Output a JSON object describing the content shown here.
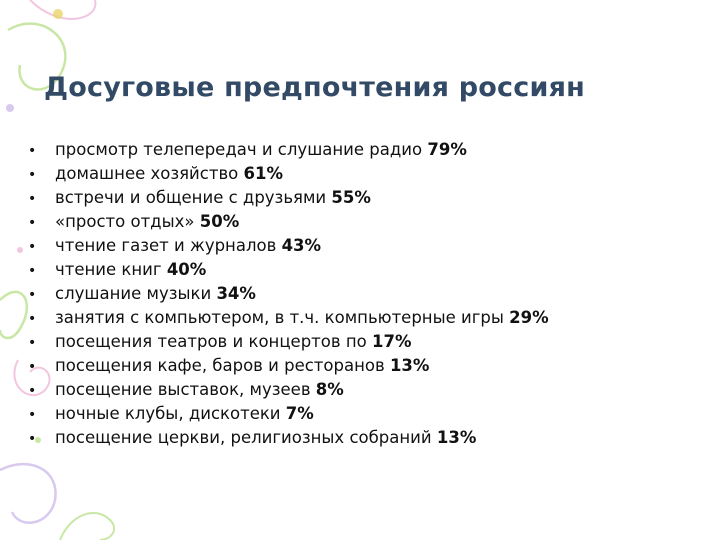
{
  "slide": {
    "title": "Досуговые предпочтения россиян",
    "bullet_symbol": "•",
    "items": [
      {
        "text": "просмотр телепередач и слушание радио ",
        "value": "79%"
      },
      {
        "text": "домашнее хозяйство ",
        "value": "61%"
      },
      {
        "text": "встречи и общение с друзьями ",
        "value": "55%"
      },
      {
        "text": "«просто отдых» ",
        "value": "50%"
      },
      {
        "text": "чтение газет и журналов ",
        "value": "43%"
      },
      {
        "text": "чтение книг ",
        "value": "40%"
      },
      {
        "text": "слушание музыки ",
        "value": "34%"
      },
      {
        "text": "занятия с компьютером, в т.ч. компьютерные игры ",
        "value": "29%"
      },
      {
        "text": "посещения театров и концертов по ",
        "value": "17%"
      },
      {
        "text": "посещения кафе, баров и ресторанов ",
        "value": "13%"
      },
      {
        "text": "посещение выставок, музеев ",
        "value": "8%"
      },
      {
        "text": "ночные клубы, дискотеки ",
        "value": "7%"
      },
      {
        "text": "посещение церкви, религиозных собраний ",
        "value": "13%"
      }
    ]
  },
  "colors": {
    "title": "#324a66",
    "text": "#111111",
    "decor_green": "#c9e7a4",
    "decor_pink": "#f3c6e0",
    "decor_lilac": "#d8c9ef"
  }
}
